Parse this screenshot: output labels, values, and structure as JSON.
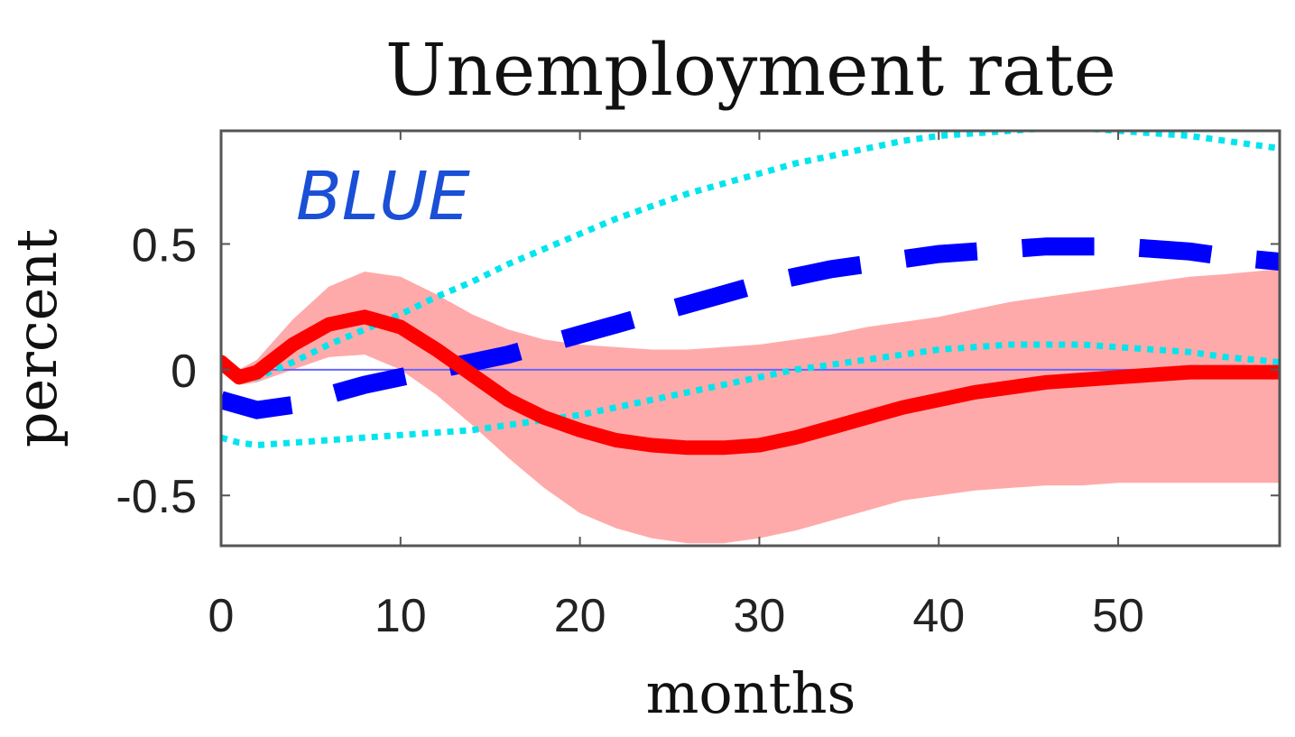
{
  "chart_data": {
    "type": "line",
    "title": "Unemployment rate",
    "xlabel": "months",
    "ylabel": "percent",
    "xlim": [
      0,
      59
    ],
    "ylim": [
      -0.7,
      0.95
    ],
    "xticks": [
      0,
      10,
      20,
      30,
      40,
      50
    ],
    "xtick_labels": [
      "0",
      "10",
      "20",
      "30",
      "40",
      "50"
    ],
    "yticks": [
      -0.5,
      0,
      0.5
    ],
    "ytick_labels": [
      "-0.5",
      "0",
      "0.5"
    ],
    "grid": false,
    "annotation": "BLUE",
    "colors": {
      "red_line": "#ff0000",
      "band": "#ffaaaa",
      "blue_dashed": "#0000ff",
      "cyan_dotted": "#00e5ee",
      "zero_line": "#6666ff",
      "annotation": "#1a4fd6"
    },
    "series": [
      {
        "style": "solid-red",
        "x": [
          0,
          1,
          2,
          4,
          6,
          8,
          10,
          12,
          14,
          16,
          18,
          20,
          22,
          24,
          26,
          28,
          30,
          32,
          34,
          36,
          38,
          40,
          42,
          44,
          46,
          48,
          50,
          52,
          54,
          56,
          59
        ],
        "y": [
          0.03,
          -0.03,
          -0.01,
          0.1,
          0.18,
          0.21,
          0.17,
          0.08,
          -0.02,
          -0.12,
          -0.19,
          -0.24,
          -0.28,
          -0.3,
          -0.31,
          -0.31,
          -0.3,
          -0.27,
          -0.23,
          -0.19,
          -0.15,
          -0.12,
          -0.09,
          -0.07,
          -0.05,
          -0.04,
          -0.03,
          -0.02,
          -0.01,
          -0.01,
          -0.01
        ]
      },
      {
        "style": "band-upper",
        "x": [
          0,
          1,
          2,
          4,
          6,
          8,
          10,
          12,
          14,
          16,
          18,
          20,
          22,
          24,
          26,
          28,
          30,
          32,
          34,
          36,
          38,
          40,
          42,
          44,
          46,
          48,
          50,
          52,
          54,
          56,
          59
        ],
        "y": [
          0.04,
          0.0,
          0.04,
          0.2,
          0.33,
          0.39,
          0.37,
          0.3,
          0.22,
          0.16,
          0.12,
          0.1,
          0.09,
          0.08,
          0.08,
          0.09,
          0.1,
          0.12,
          0.14,
          0.17,
          0.19,
          0.21,
          0.24,
          0.27,
          0.29,
          0.31,
          0.33,
          0.35,
          0.37,
          0.38,
          0.4
        ]
      },
      {
        "style": "band-lower",
        "x": [
          0,
          1,
          2,
          4,
          6,
          8,
          10,
          12,
          14,
          16,
          18,
          20,
          22,
          24,
          26,
          28,
          30,
          32,
          34,
          36,
          38,
          40,
          42,
          44,
          46,
          48,
          50,
          52,
          54,
          56,
          59
        ],
        "y": [
          0.02,
          -0.06,
          -0.05,
          0.0,
          0.05,
          0.06,
          0.0,
          -0.1,
          -0.22,
          -0.35,
          -0.47,
          -0.57,
          -0.63,
          -0.67,
          -0.69,
          -0.69,
          -0.67,
          -0.64,
          -0.6,
          -0.56,
          -0.52,
          -0.5,
          -0.48,
          -0.47,
          -0.46,
          -0.46,
          -0.45,
          -0.45,
          -0.45,
          -0.45,
          -0.45
        ]
      },
      {
        "style": "dashed-blue",
        "x": [
          0,
          2,
          4,
          6,
          8,
          10,
          12,
          14,
          16,
          18,
          20,
          22,
          24,
          26,
          28,
          30,
          32,
          34,
          36,
          38,
          40,
          42,
          44,
          46,
          48,
          50,
          52,
          54,
          56,
          59
        ],
        "y": [
          -0.12,
          -0.16,
          -0.14,
          -0.1,
          -0.06,
          -0.03,
          0.0,
          0.03,
          0.06,
          0.1,
          0.14,
          0.18,
          0.22,
          0.26,
          0.3,
          0.34,
          0.37,
          0.4,
          0.42,
          0.44,
          0.46,
          0.47,
          0.48,
          0.49,
          0.49,
          0.49,
          0.48,
          0.47,
          0.45,
          0.43
        ]
      },
      {
        "style": "dotted-cyan-upper",
        "x": [
          0,
          1,
          2,
          4,
          6,
          8,
          10,
          12,
          14,
          16,
          18,
          20,
          22,
          24,
          26,
          28,
          30,
          32,
          34,
          36,
          38,
          40,
          42,
          44,
          46,
          48,
          50,
          52,
          54,
          56,
          59
        ],
        "y": [
          0.02,
          -0.04,
          -0.03,
          0.03,
          0.1,
          0.16,
          0.22,
          0.29,
          0.35,
          0.42,
          0.48,
          0.54,
          0.6,
          0.65,
          0.7,
          0.74,
          0.78,
          0.82,
          0.85,
          0.88,
          0.91,
          0.93,
          0.94,
          0.95,
          0.96,
          0.96,
          0.95,
          0.94,
          0.93,
          0.91,
          0.88
        ]
      },
      {
        "style": "dotted-cyan-lower",
        "x": [
          0,
          1,
          2,
          4,
          6,
          8,
          10,
          12,
          14,
          16,
          18,
          20,
          22,
          24,
          26,
          28,
          30,
          32,
          34,
          36,
          38,
          40,
          42,
          44,
          46,
          48,
          50,
          52,
          54,
          56,
          59
        ],
        "y": [
          -0.27,
          -0.29,
          -0.3,
          -0.29,
          -0.28,
          -0.27,
          -0.26,
          -0.25,
          -0.24,
          -0.22,
          -0.2,
          -0.18,
          -0.15,
          -0.12,
          -0.09,
          -0.06,
          -0.03,
          0.0,
          0.02,
          0.04,
          0.06,
          0.08,
          0.09,
          0.1,
          0.1,
          0.1,
          0.09,
          0.08,
          0.07,
          0.05,
          0.03
        ]
      }
    ]
  }
}
